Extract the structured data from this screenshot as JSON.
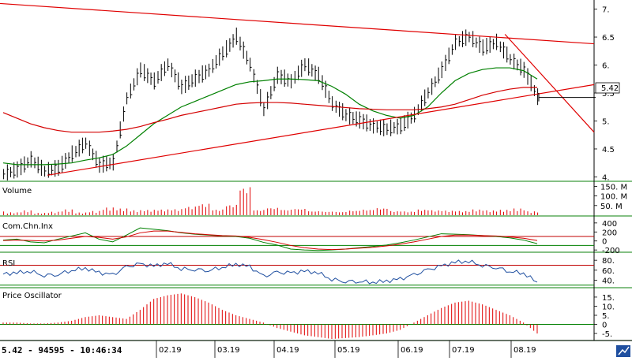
{
  "status_text": "5.42 - 94595 - 10:46:34",
  "current_price_label": "5.42",
  "colors": {
    "price_bars": "#000000",
    "ma_long": "#d40000",
    "ma_short": "#008000",
    "trendline": "#e00000",
    "volume": "#e00000",
    "panel_separator": "#3c9a3c",
    "rsi_line": "#1f4fa0",
    "cci_line": "#008000",
    "cci_signal": "#d40000",
    "oscillator": "#e00000"
  },
  "toolbar_icon": "chart-logo-icon",
  "chart_data": [
    {
      "type": "ohlc",
      "panel": "price",
      "title": "",
      "xlabel": "",
      "ylabel": "",
      "x_ticks": [
        "02.19",
        "03.19",
        "04.19",
        "05.19",
        "06.19",
        "07.19",
        "08.19"
      ],
      "y_ticks": [
        "4.",
        "4.5",
        "5.",
        "5.5",
        "6.",
        "6.5",
        "7."
      ],
      "ylim": [
        3.95,
        7.05
      ],
      "close_series_by_week": [
        4.05,
        4.12,
        4.3,
        4.1,
        4.15,
        4.4,
        4.6,
        4.2,
        4.25,
        5.4,
        5.9,
        5.7,
        6.0,
        5.6,
        5.75,
        5.9,
        6.2,
        6.5,
        6.0,
        5.2,
        5.8,
        5.7,
        6.0,
        5.8,
        5.3,
        5.1,
        5.0,
        4.9,
        4.85,
        4.9,
        5.1,
        5.5,
        5.9,
        6.4,
        6.5,
        6.3,
        6.4,
        6.1,
        5.9,
        5.42
      ],
      "series": [
        {
          "name": "",
          "kind": "moving-average-short",
          "values": [
            4.25,
            4.22,
            4.22,
            4.22,
            4.23,
            4.25,
            4.3,
            4.34,
            4.4,
            4.55,
            4.75,
            4.95,
            5.1,
            5.25,
            5.35,
            5.45,
            5.55,
            5.65,
            5.7,
            5.72,
            5.75,
            5.75,
            5.74,
            5.72,
            5.62,
            5.48,
            5.3,
            5.18,
            5.1,
            5.05,
            5.1,
            5.25,
            5.5,
            5.72,
            5.85,
            5.92,
            5.95,
            5.95,
            5.9,
            5.75
          ]
        },
        {
          "name": "",
          "kind": "moving-average-long",
          "values": [
            5.15,
            5.05,
            4.95,
            4.88,
            4.83,
            4.8,
            4.8,
            4.8,
            4.82,
            4.85,
            4.9,
            4.97,
            5.03,
            5.1,
            5.15,
            5.2,
            5.25,
            5.3,
            5.32,
            5.33,
            5.33,
            5.32,
            5.3,
            5.28,
            5.26,
            5.24,
            5.22,
            5.21,
            5.2,
            5.2,
            5.2,
            5.22,
            5.25,
            5.3,
            5.38,
            5.46,
            5.52,
            5.57,
            5.6,
            5.6
          ]
        }
      ],
      "trendlines": [
        {
          "name": "",
          "from": [
            0.08,
            4.03
          ],
          "to": [
            1.0,
            5.65
          ]
        },
        {
          "name": "",
          "from": [
            0.0,
            7.1
          ],
          "to": [
            1.0,
            6.38
          ]
        },
        {
          "name": "",
          "from": [
            0.85,
            6.55
          ],
          "to": [
            1.0,
            4.8
          ]
        }
      ]
    },
    {
      "type": "bar",
      "panel": "volume",
      "title": "Volume",
      "y_ticks": [
        "50. M",
        "100. M",
        "150. M"
      ],
      "ylim": [
        0,
        160
      ],
      "values": [
        20,
        15,
        25,
        12,
        18,
        30,
        14,
        22,
        40,
        35,
        26,
        28,
        30,
        32,
        45,
        60,
        30,
        55,
        150,
        28,
        40,
        30,
        35,
        22,
        20,
        18,
        25,
        30,
        38,
        22,
        20,
        30,
        26,
        24,
        22,
        30,
        25,
        28,
        35,
        20
      ]
    },
    {
      "type": "line",
      "panel": "cci",
      "title": "Com.Chn.Inx",
      "y_ticks": [
        "-200",
        "0",
        "200",
        "400"
      ],
      "ylim": [
        -250,
        450
      ],
      "series": [
        {
          "name": "",
          "values": [
            20,
            40,
            -20,
            -40,
            40,
            110,
            180,
            40,
            -20,
            130,
            290,
            260,
            230,
            180,
            150,
            130,
            110,
            100,
            60,
            -30,
            -90,
            -180,
            -200,
            -210,
            -200,
            -180,
            -150,
            -120,
            -90,
            -40,
            20,
            90,
            160,
            150,
            140,
            120,
            100,
            70,
            20,
            -60
          ]
        },
        {
          "name": "",
          "values": [
            10,
            20,
            10,
            0,
            20,
            60,
            100,
            80,
            40,
            90,
            180,
            220,
            220,
            190,
            160,
            140,
            120,
            110,
            80,
            30,
            -30,
            -100,
            -150,
            -180,
            -190,
            -180,
            -160,
            -140,
            -110,
            -70,
            -20,
            40,
            100,
            130,
            130,
            120,
            110,
            90,
            60,
            10
          ]
        }
      ],
      "reference_levels": [
        100,
        -100
      ]
    },
    {
      "type": "line",
      "panel": "rsi",
      "title": "RSI",
      "y_ticks": [
        "40.",
        "60.",
        "80."
      ],
      "ylim": [
        28,
        85
      ],
      "series": [
        {
          "name": "",
          "values": [
            52,
            55,
            58,
            50,
            52,
            60,
            64,
            55,
            50,
            66,
            72,
            68,
            74,
            63,
            62,
            60,
            66,
            72,
            67,
            47,
            55,
            54,
            58,
            55,
            42,
            38,
            38,
            36,
            38,
            42,
            50,
            60,
            68,
            76,
            78,
            70,
            66,
            58,
            54,
            36
          ]
        }
      ],
      "reference_levels": [
        70,
        30
      ]
    },
    {
      "type": "bar",
      "panel": "oscillator",
      "title": "Price Oscillator",
      "y_ticks": [
        "-5.",
        "0",
        "5.",
        "10.",
        "15."
      ],
      "ylim": [
        -8,
        18
      ],
      "values": [
        1,
        1,
        0.5,
        0.5,
        1,
        2,
        4,
        5,
        4,
        3,
        8,
        14,
        16,
        17,
        15,
        12,
        8,
        5,
        3,
        1,
        -2,
        -4,
        -6,
        -7,
        -8,
        -7.5,
        -7,
        -6,
        -5,
        -3,
        1,
        5,
        9,
        12,
        13,
        11,
        8,
        5,
        1,
        -5
      ]
    }
  ]
}
